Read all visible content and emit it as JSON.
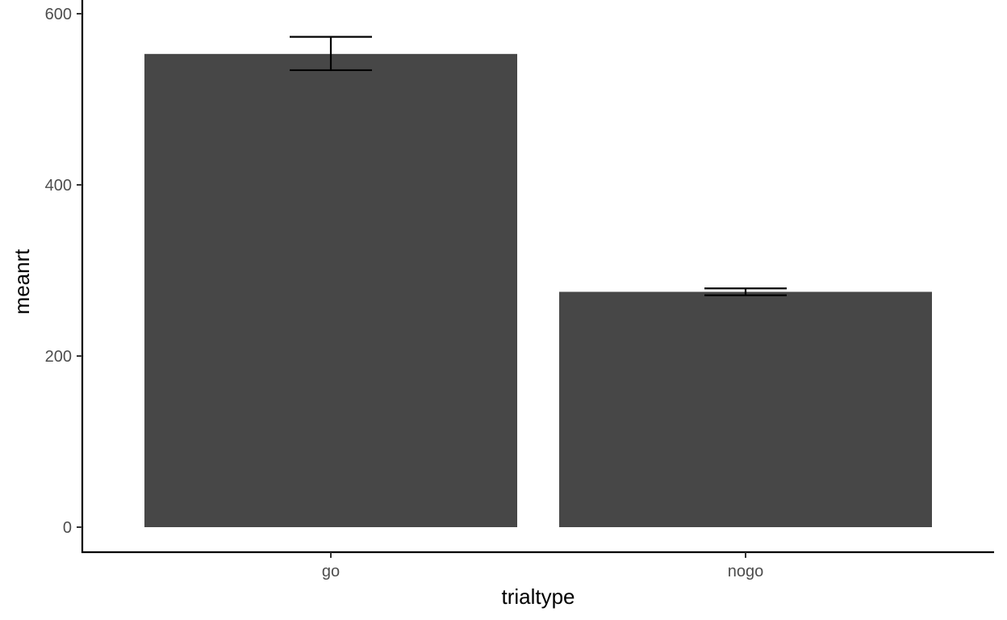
{
  "chart_data": {
    "type": "bar",
    "categories": [
      "go",
      "nogo"
    ],
    "values": [
      553,
      275
    ],
    "error_bars": [
      {
        "low": 534,
        "high": 573
      },
      {
        "low": 271,
        "high": 279
      }
    ],
    "xlabel": "trialtype",
    "ylabel": "meanrt",
    "yticks": [
      0,
      200,
      400,
      600
    ],
    "ylim": [
      -29,
      600
    ],
    "grid": false,
    "legend": "none",
    "bar_color": "#474747",
    "axis_color": "#000000"
  }
}
